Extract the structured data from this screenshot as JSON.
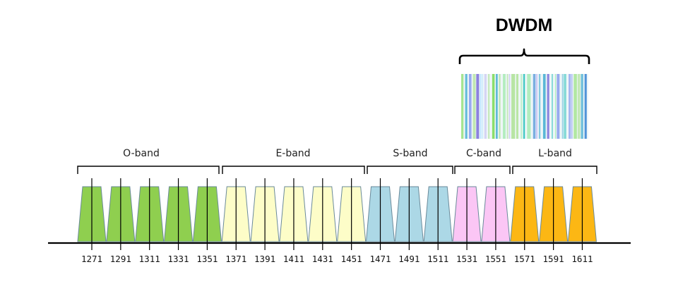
{
  "title": "DWDM",
  "bands": [
    {
      "label": "O-band"
    },
    {
      "label": "E-band"
    },
    {
      "label": "S-band"
    },
    {
      "label": "C-band"
    },
    {
      "label": "L-band"
    }
  ],
  "channels": [
    {
      "wavelength": "1271",
      "band": 0
    },
    {
      "wavelength": "1291",
      "band": 0
    },
    {
      "wavelength": "1311",
      "band": 0
    },
    {
      "wavelength": "1331",
      "band": 0
    },
    {
      "wavelength": "1351",
      "band": 0
    },
    {
      "wavelength": "1371",
      "band": 1
    },
    {
      "wavelength": "1391",
      "band": 1
    },
    {
      "wavelength": "1411",
      "band": 1
    },
    {
      "wavelength": "1431",
      "band": 1
    },
    {
      "wavelength": "1451",
      "band": 1
    },
    {
      "wavelength": "1471",
      "band": 2
    },
    {
      "wavelength": "1491",
      "band": 2
    },
    {
      "wavelength": "1511",
      "band": 2
    },
    {
      "wavelength": "1531",
      "band": 3
    },
    {
      "wavelength": "1551",
      "band": 3
    },
    {
      "wavelength": "1571",
      "band": 4
    },
    {
      "wavelength": "1591",
      "band": 4
    },
    {
      "wavelength": "1611",
      "band": 4
    }
  ],
  "colors": {
    "O-band": "#8fcf4f",
    "E-band": "#fdfdc8",
    "S-band": "#acd8e6",
    "C-band": "#fbc6f5",
    "L-band": "#fcb714",
    "outline": "#6a8a9a",
    "axis": "#000000"
  },
  "dwdm_stripe_colors": [
    "#5ab7d6",
    "#7fdc5a",
    "#8fa2ee",
    "#4b8fd8",
    "#a8e08a",
    "#6f5ed6",
    "#c9c2f2",
    "#a6ebb3",
    "#3ec7c2",
    "#bfe6ff"
  ]
}
